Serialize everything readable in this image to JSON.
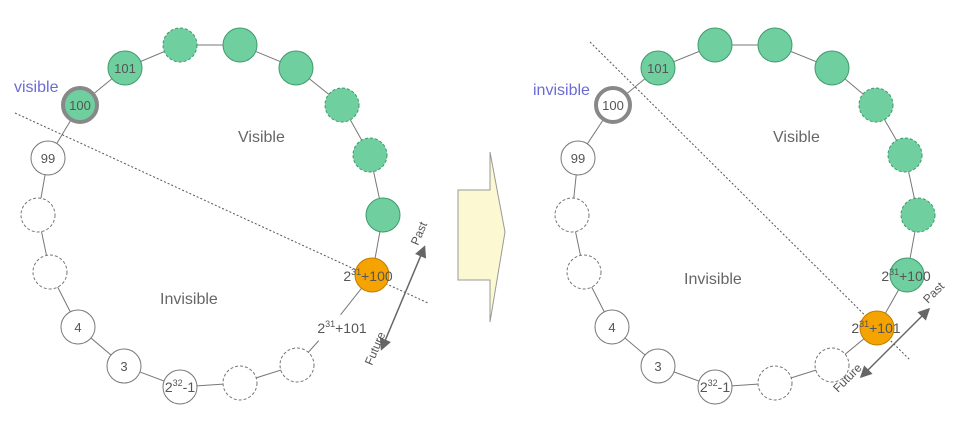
{
  "colors": {
    "green": "#6fcf9f",
    "green_stroke": "#3e9a6c",
    "orange": "#f5a300",
    "orange_stroke": "#c07c00",
    "ring": "#777777",
    "accent_text": "#6b6bd6",
    "arrow_fill": "#fcf9d2"
  },
  "left": {
    "corner_label": "visible",
    "region_visible": "Visible",
    "region_invisible": "Invisible",
    "direction_past": "Past",
    "direction_future": "Future",
    "nodes": {
      "n101": "101",
      "n100": "100",
      "n99": "99",
      "n4": "4",
      "n3": "3",
      "max_base": "2",
      "max_exp": "32",
      "max_rest": "-1",
      "cur_base": "2",
      "cur_exp": "31",
      "cur_rest": "+100",
      "next_base": "2",
      "next_exp": "31",
      "next_rest": "+101"
    }
  },
  "right": {
    "corner_label": "invisible",
    "region_visible": "Visible",
    "region_invisible": "Invisible",
    "direction_past": "Past",
    "direction_future": "Future",
    "nodes": {
      "n101": "101",
      "n100": "100",
      "n99": "99",
      "n4": "4",
      "n3": "3",
      "max_base": "2",
      "max_exp": "32",
      "max_rest": "-1",
      "prev_base": "2",
      "prev_exp": "31",
      "prev_rest": "+100",
      "cur_base": "2",
      "cur_exp": "31",
      "cur_rest": "+101"
    }
  }
}
